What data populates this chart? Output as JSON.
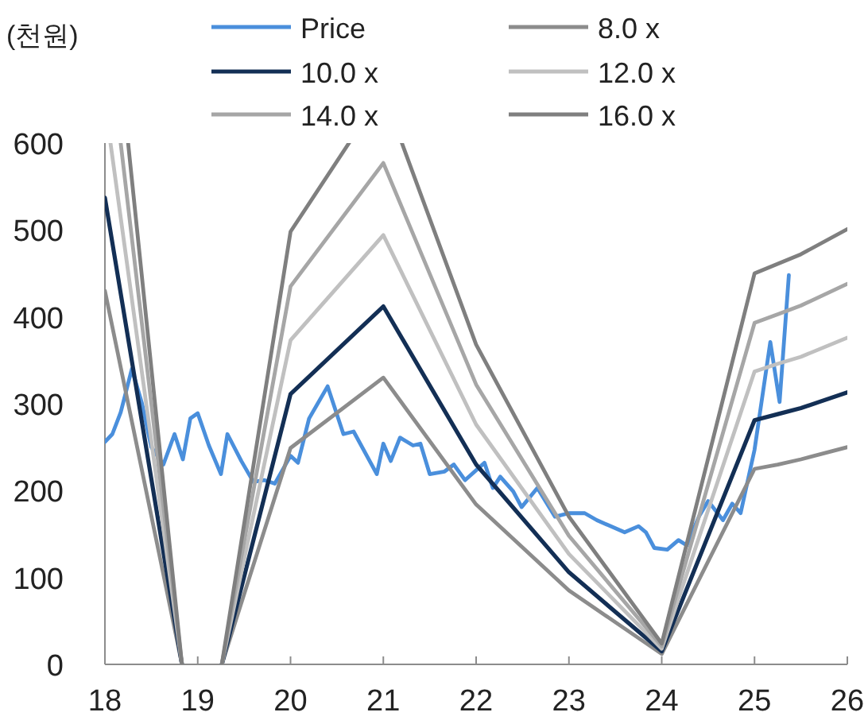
{
  "chart_data": {
    "type": "line",
    "ylabel": "(천원)",
    "ylim": [
      0,
      600
    ],
    "yticks": [
      0,
      100,
      200,
      300,
      400,
      500,
      600
    ],
    "xlim": [
      18,
      26
    ],
    "xticks": [
      18,
      19,
      20,
      21,
      22,
      23,
      24,
      25,
      26
    ],
    "grid": false,
    "legend": "top",
    "marker": "none",
    "line_style": "solid",
    "series": [
      {
        "name": "Price",
        "color": "#4a8fdc",
        "x": [
          18.0,
          18.08,
          18.17,
          18.29,
          18.4,
          18.5,
          18.63,
          18.75,
          18.84,
          18.92,
          19.0,
          19.12,
          19.25,
          19.32,
          19.47,
          19.6,
          19.72,
          19.83,
          20.0,
          20.08,
          20.2,
          20.4,
          20.57,
          20.68,
          20.93,
          21.0,
          21.08,
          21.18,
          21.32,
          21.4,
          21.5,
          21.66,
          21.76,
          21.88,
          22.09,
          22.18,
          22.26,
          22.4,
          22.49,
          22.66,
          22.85,
          23.0,
          23.17,
          23.3,
          23.6,
          23.75,
          23.83,
          23.92,
          24.06,
          24.18,
          24.27,
          24.4,
          24.5,
          24.66,
          24.76,
          24.85,
          25.0,
          25.17,
          25.27,
          25.37
        ],
        "values": [
          256,
          265,
          290,
          340,
          300,
          250,
          230,
          265,
          236,
          283,
          289,
          252,
          219,
          265,
          234,
          210,
          212,
          208,
          240,
          232,
          283,
          320,
          265,
          268,
          219,
          254,
          234,
          261,
          252,
          254,
          219,
          222,
          230,
          212,
          232,
          203,
          216,
          199,
          181,
          203,
          170,
          174,
          174,
          166,
          152,
          159,
          152,
          134,
          132,
          143,
          137,
          170,
          188,
          166,
          185,
          174,
          247,
          371,
          302,
          448
        ]
      },
      {
        "name": "8.0 x",
        "color": "#8c8c8c",
        "x": [
          18,
          18.83,
          19.26,
          20,
          21,
          22,
          23,
          24,
          25,
          25.25,
          25.5,
          26
        ],
        "values": [
          430,
          0,
          0,
          249,
          330,
          184,
          85,
          12,
          225,
          230,
          236,
          250
        ]
      },
      {
        "name": "10.0 x",
        "color": "#132f55",
        "x": [
          18,
          18.83,
          19.26,
          20,
          21,
          22,
          23,
          24,
          25,
          25.25,
          25.5,
          26
        ],
        "values": [
          537,
          0,
          0,
          311,
          412,
          230,
          106,
          15,
          281,
          288,
          295,
          313
        ]
      },
      {
        "name": "12.0 x",
        "color": "#c0c0c0",
        "x": [
          18.06,
          18.83,
          19.26,
          20,
          21,
          22,
          23,
          24,
          25,
          25.25,
          25.5,
          26
        ],
        "values": [
          600,
          0,
          0,
          373,
          494,
          276,
          127,
          18,
          337,
          346,
          354,
          376
        ]
      },
      {
        "name": "14.0 x",
        "color": "#a6a6a6",
        "x": [
          18.17,
          18.83,
          19.26,
          20,
          21,
          22,
          23,
          24,
          25,
          25.25,
          25.5,
          26
        ],
        "values": [
          600,
          0,
          0,
          435,
          577,
          322,
          148,
          21,
          393,
          403,
          413,
          438
        ]
      },
      {
        "name": "16.0 x",
        "color": "#7f7f7f",
        "x": [
          18.25,
          18.83,
          19.26,
          20,
          20.63,
          21.2,
          22,
          23,
          24,
          25,
          25.25,
          25.5,
          26
        ],
        "values": [
          600,
          0,
          0,
          498,
          600,
          600,
          368,
          170,
          24,
          450,
          461,
          472,
          501
        ]
      }
    ]
  }
}
